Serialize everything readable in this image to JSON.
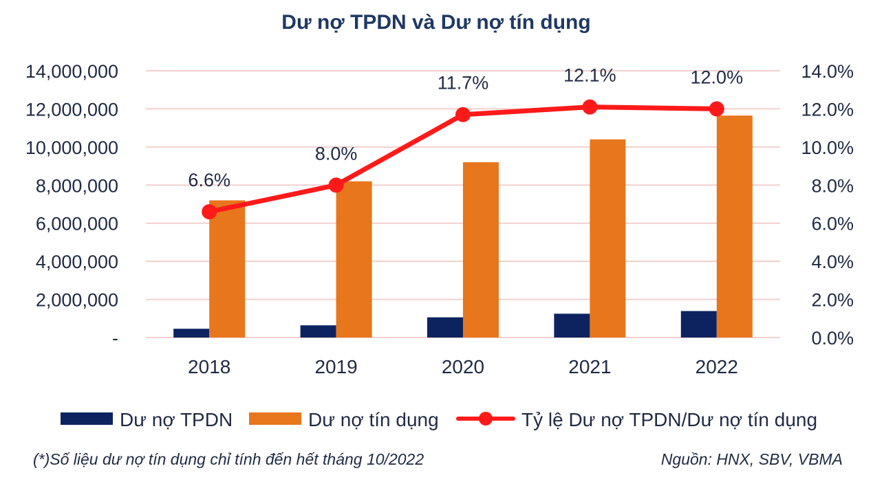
{
  "chart_data": {
    "type": "bar",
    "title": "Dư nợ TPDN và Dư nợ tín dụng",
    "categories": [
      "2018",
      "2019",
      "2020",
      "2021",
      "2022"
    ],
    "series": [
      {
        "name": "Dư nợ TPDN",
        "kind": "bar",
        "axis": "left",
        "color": "#0d2360",
        "values": [
          460000,
          640000,
          1060000,
          1250000,
          1390000
        ]
      },
      {
        "name": "Dư nợ tín dụng",
        "kind": "bar",
        "axis": "left",
        "color": "#e8761c",
        "values": [
          7200000,
          8200000,
          9200000,
          10400000,
          11650000
        ]
      },
      {
        "name": "Tỷ lệ Dư nợ TPDN/Dư nợ tín dụng",
        "kind": "line",
        "axis": "right",
        "color": "#ff1a1a",
        "values": [
          6.6,
          8.0,
          11.7,
          12.1,
          12.0
        ],
        "labels": [
          "6.6%",
          "8.0%",
          "11.7%",
          "12.1%",
          "12.0%"
        ]
      }
    ],
    "y_left": {
      "min": 0,
      "max": 14000000,
      "ticks": [
        "-",
        "2,000,000",
        "4,000,000",
        "6,000,000",
        "8,000,000",
        "10,000,000",
        "12,000,000",
        "14,000,000"
      ]
    },
    "y_right": {
      "min": 0,
      "max": 14,
      "ticks": [
        "0.0%",
        "2.0%",
        "4.0%",
        "6.0%",
        "8.0%",
        "10.0%",
        "12.0%",
        "14.0%"
      ]
    },
    "grid": true,
    "legend_position": "bottom",
    "footnote": "(*)Số liệu dư nợ tín dụng chỉ tính đến hết tháng 10/2022",
    "source": "Nguồn: HNX, SBV, VBMA"
  },
  "colors": {
    "grid": "#f2d0cf",
    "title": "#1f3864"
  }
}
